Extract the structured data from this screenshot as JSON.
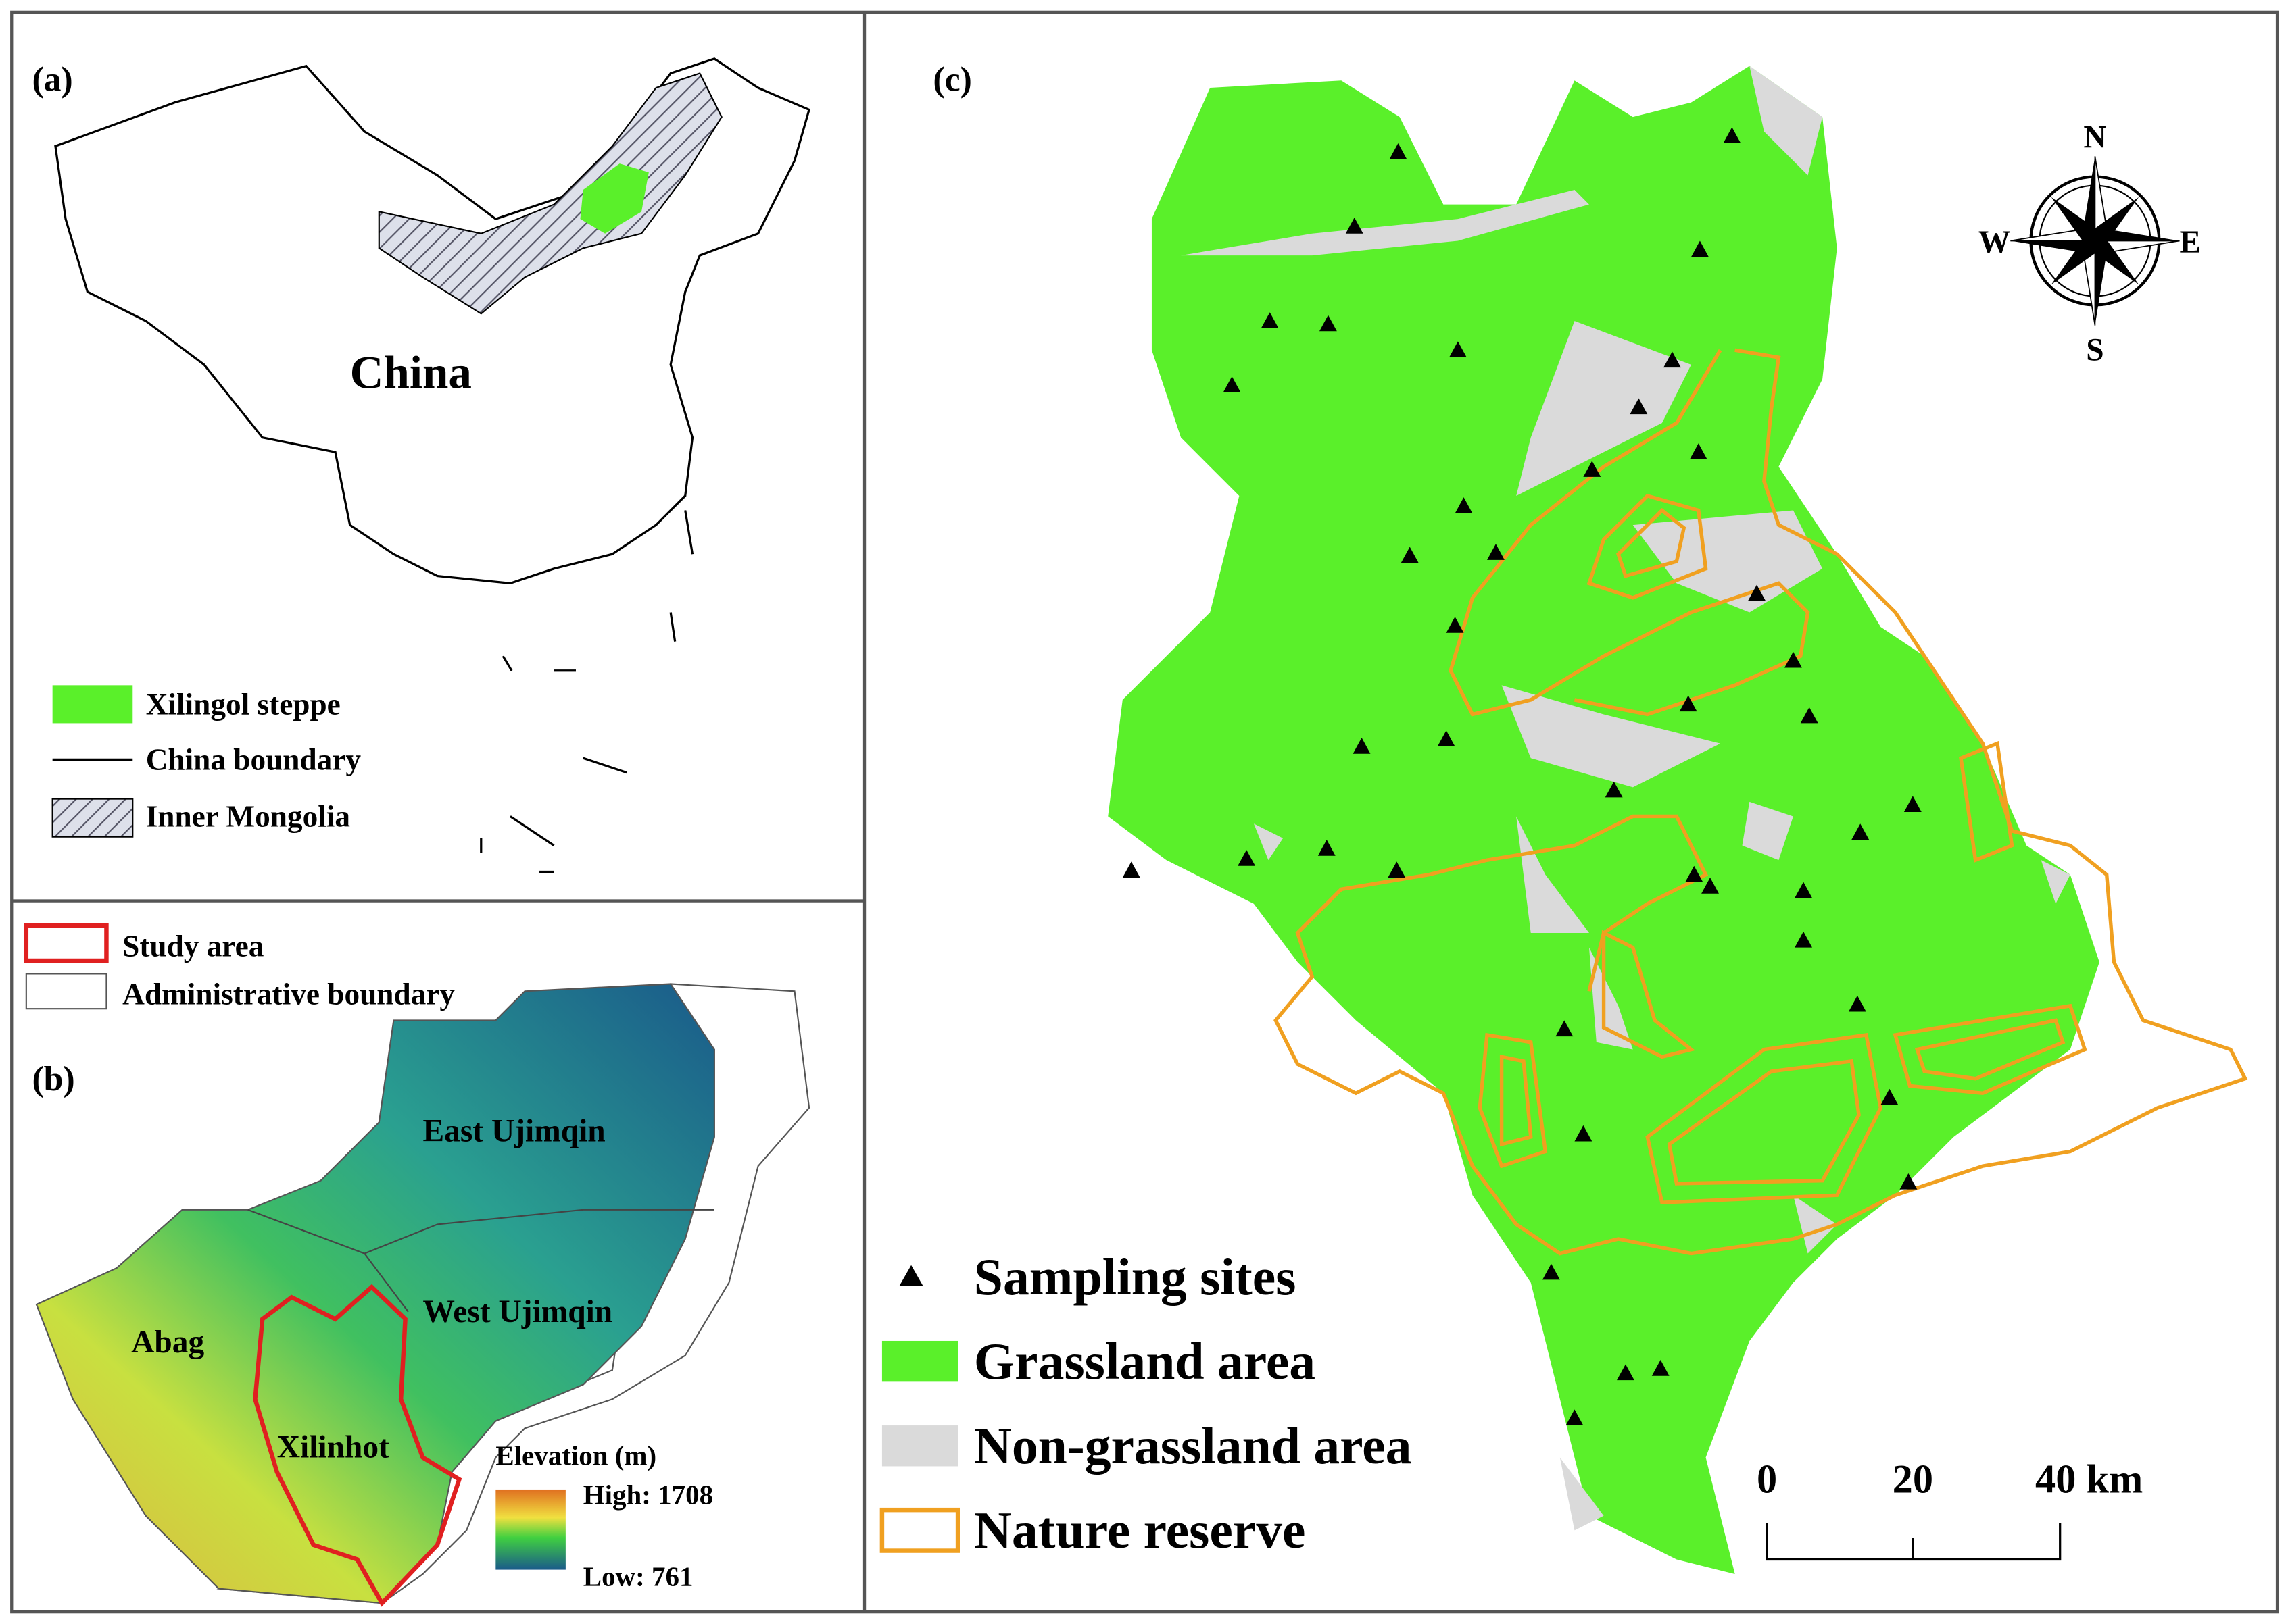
{
  "panel_a": {
    "label": "(a)",
    "country": "China",
    "legend": [
      "Xilingol steppe",
      "China boundary",
      "Inner Mongolia"
    ]
  },
  "panel_b": {
    "label": "(b)",
    "legend": [
      "Study area",
      "Administrative boundary"
    ],
    "regions": [
      "East Ujimqin",
      "West Ujimqin",
      "Abag",
      "Xilinhot"
    ],
    "elevation": {
      "title": "Elevation (m)",
      "high": "High: 1708",
      "low": "Low: 761"
    }
  },
  "panel_c": {
    "label": "(c)",
    "legend": [
      "Sampling sites",
      "Grassland area",
      "Non-grassland area",
      "Nature reserve"
    ],
    "compass": [
      "N",
      "E",
      "S",
      "W"
    ],
    "scale_bar": [
      "0",
      "20",
      "40 km"
    ]
  }
}
